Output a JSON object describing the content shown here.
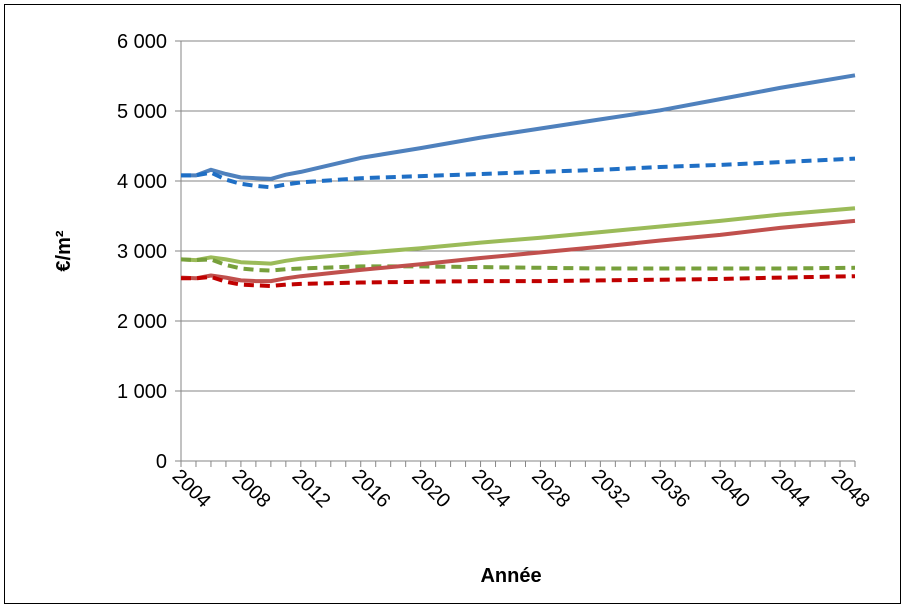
{
  "chart_data": {
    "type": "line",
    "title": "",
    "xlabel": "Année",
    "ylabel": "€/m²",
    "ylim": [
      0,
      6000
    ],
    "xlim": [
      2004,
      2049
    ],
    "y_ticks": [
      0,
      1000,
      2000,
      3000,
      4000,
      5000,
      6000
    ],
    "y_tick_labels": [
      "0",
      "1 000",
      "2 000",
      "3 000",
      "4 000",
      "5 000",
      "6 000"
    ],
    "x_ticks": [
      2004,
      2008,
      2012,
      2016,
      2020,
      2024,
      2028,
      2032,
      2036,
      2040,
      2044,
      2048
    ],
    "x_tick_labels": [
      "2004",
      "2008",
      "2012",
      "2016",
      "2020",
      "2024",
      "2028",
      "2032",
      "2036",
      "2040",
      "2044",
      "2048"
    ],
    "grid": "horizontal",
    "legend": "none",
    "series": [
      {
        "color": "#4F81BD",
        "dash": "solid",
        "points": [
          [
            2004,
            4080
          ],
          [
            2005,
            4080
          ],
          [
            2006,
            4160
          ],
          [
            2007,
            4100
          ],
          [
            2008,
            4050
          ],
          [
            2009,
            4040
          ],
          [
            2010,
            4030
          ],
          [
            2011,
            4090
          ],
          [
            2012,
            4130
          ],
          [
            2016,
            4330
          ],
          [
            2020,
            4470
          ],
          [
            2024,
            4620
          ],
          [
            2028,
            4750
          ],
          [
            2032,
            4880
          ],
          [
            2036,
            5010
          ],
          [
            2040,
            5170
          ],
          [
            2044,
            5330
          ],
          [
            2049,
            5510
          ]
        ]
      },
      {
        "color": "#1F6FC5",
        "dash": "dashed",
        "points": [
          [
            2004,
            4080
          ],
          [
            2005,
            4080
          ],
          [
            2006,
            4120
          ],
          [
            2007,
            4020
          ],
          [
            2008,
            3960
          ],
          [
            2009,
            3930
          ],
          [
            2010,
            3910
          ],
          [
            2011,
            3950
          ],
          [
            2012,
            3980
          ],
          [
            2016,
            4040
          ],
          [
            2020,
            4070
          ],
          [
            2024,
            4100
          ],
          [
            2028,
            4130
          ],
          [
            2032,
            4160
          ],
          [
            2036,
            4200
          ],
          [
            2040,
            4230
          ],
          [
            2044,
            4270
          ],
          [
            2049,
            4320
          ]
        ]
      },
      {
        "color": "#9BBB59",
        "dash": "solid",
        "points": [
          [
            2004,
            2880
          ],
          [
            2005,
            2870
          ],
          [
            2006,
            2910
          ],
          [
            2007,
            2880
          ],
          [
            2008,
            2840
          ],
          [
            2009,
            2830
          ],
          [
            2010,
            2820
          ],
          [
            2011,
            2860
          ],
          [
            2012,
            2890
          ],
          [
            2016,
            2970
          ],
          [
            2020,
            3040
          ],
          [
            2024,
            3120
          ],
          [
            2028,
            3190
          ],
          [
            2032,
            3270
          ],
          [
            2036,
            3350
          ],
          [
            2040,
            3430
          ],
          [
            2044,
            3520
          ],
          [
            2049,
            3610
          ]
        ]
      },
      {
        "color": "#77A03C",
        "dash": "dashed",
        "points": [
          [
            2004,
            2880
          ],
          [
            2005,
            2870
          ],
          [
            2006,
            2880
          ],
          [
            2007,
            2800
          ],
          [
            2008,
            2750
          ],
          [
            2009,
            2730
          ],
          [
            2010,
            2720
          ],
          [
            2011,
            2740
          ],
          [
            2012,
            2750
          ],
          [
            2016,
            2780
          ],
          [
            2020,
            2780
          ],
          [
            2024,
            2770
          ],
          [
            2028,
            2760
          ],
          [
            2032,
            2750
          ],
          [
            2036,
            2750
          ],
          [
            2040,
            2750
          ],
          [
            2044,
            2750
          ],
          [
            2049,
            2760
          ]
        ]
      },
      {
        "color": "#C0504D",
        "dash": "solid",
        "points": [
          [
            2004,
            2620
          ],
          [
            2005,
            2610
          ],
          [
            2006,
            2650
          ],
          [
            2007,
            2620
          ],
          [
            2008,
            2580
          ],
          [
            2009,
            2570
          ],
          [
            2010,
            2570
          ],
          [
            2011,
            2610
          ],
          [
            2012,
            2640
          ],
          [
            2016,
            2730
          ],
          [
            2020,
            2810
          ],
          [
            2024,
            2900
          ],
          [
            2028,
            2980
          ],
          [
            2032,
            3060
          ],
          [
            2036,
            3150
          ],
          [
            2040,
            3230
          ],
          [
            2044,
            3330
          ],
          [
            2049,
            3430
          ]
        ]
      },
      {
        "color": "#C00000",
        "dash": "dashed",
        "points": [
          [
            2004,
            2610
          ],
          [
            2005,
            2610
          ],
          [
            2006,
            2630
          ],
          [
            2007,
            2560
          ],
          [
            2008,
            2520
          ],
          [
            2009,
            2510
          ],
          [
            2010,
            2500
          ],
          [
            2011,
            2520
          ],
          [
            2012,
            2530
          ],
          [
            2016,
            2550
          ],
          [
            2020,
            2560
          ],
          [
            2024,
            2570
          ],
          [
            2028,
            2570
          ],
          [
            2032,
            2580
          ],
          [
            2036,
            2590
          ],
          [
            2040,
            2600
          ],
          [
            2044,
            2620
          ],
          [
            2049,
            2640
          ]
        ]
      }
    ]
  }
}
